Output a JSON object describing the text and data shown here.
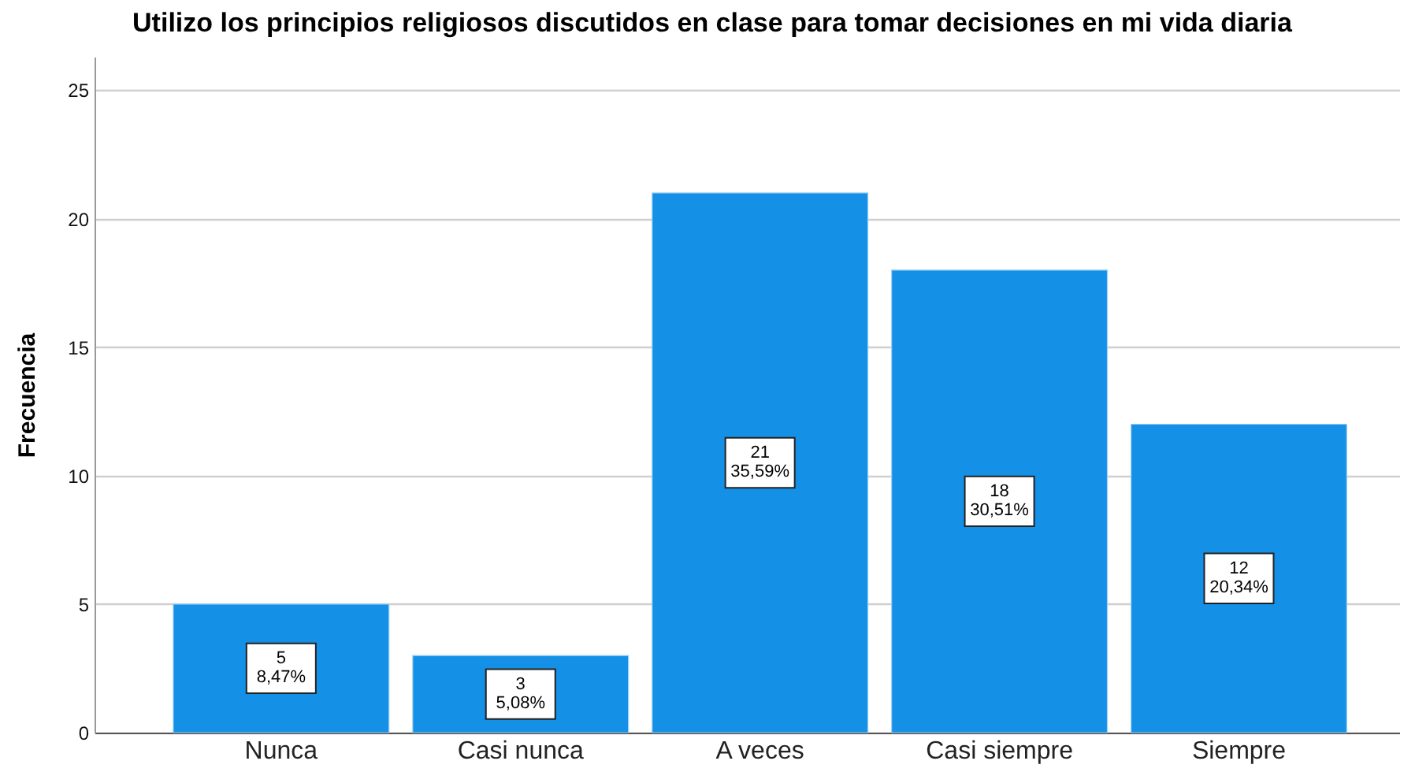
{
  "chart_data": {
    "type": "bar",
    "title": "Utilizo los principios religiosos discutidos en clase para tomar decisiones en mi vida diaria",
    "ylabel": "Frecuencia",
    "categories": [
      "Nunca",
      "Casi nunca",
      "A veces",
      "Casi siempre",
      "Siempre"
    ],
    "values": [
      5,
      3,
      21,
      18,
      12
    ],
    "value_labels": [
      "5\n8,47%",
      "3\n5,08%",
      "21\n35,59%",
      "18\n30,51%",
      "12\n20,34%"
    ],
    "color": "#1490e6",
    "ylim": [
      0,
      26.3
    ],
    "yticks": [
      0,
      5,
      10,
      15,
      20,
      25
    ],
    "grid": "y"
  }
}
